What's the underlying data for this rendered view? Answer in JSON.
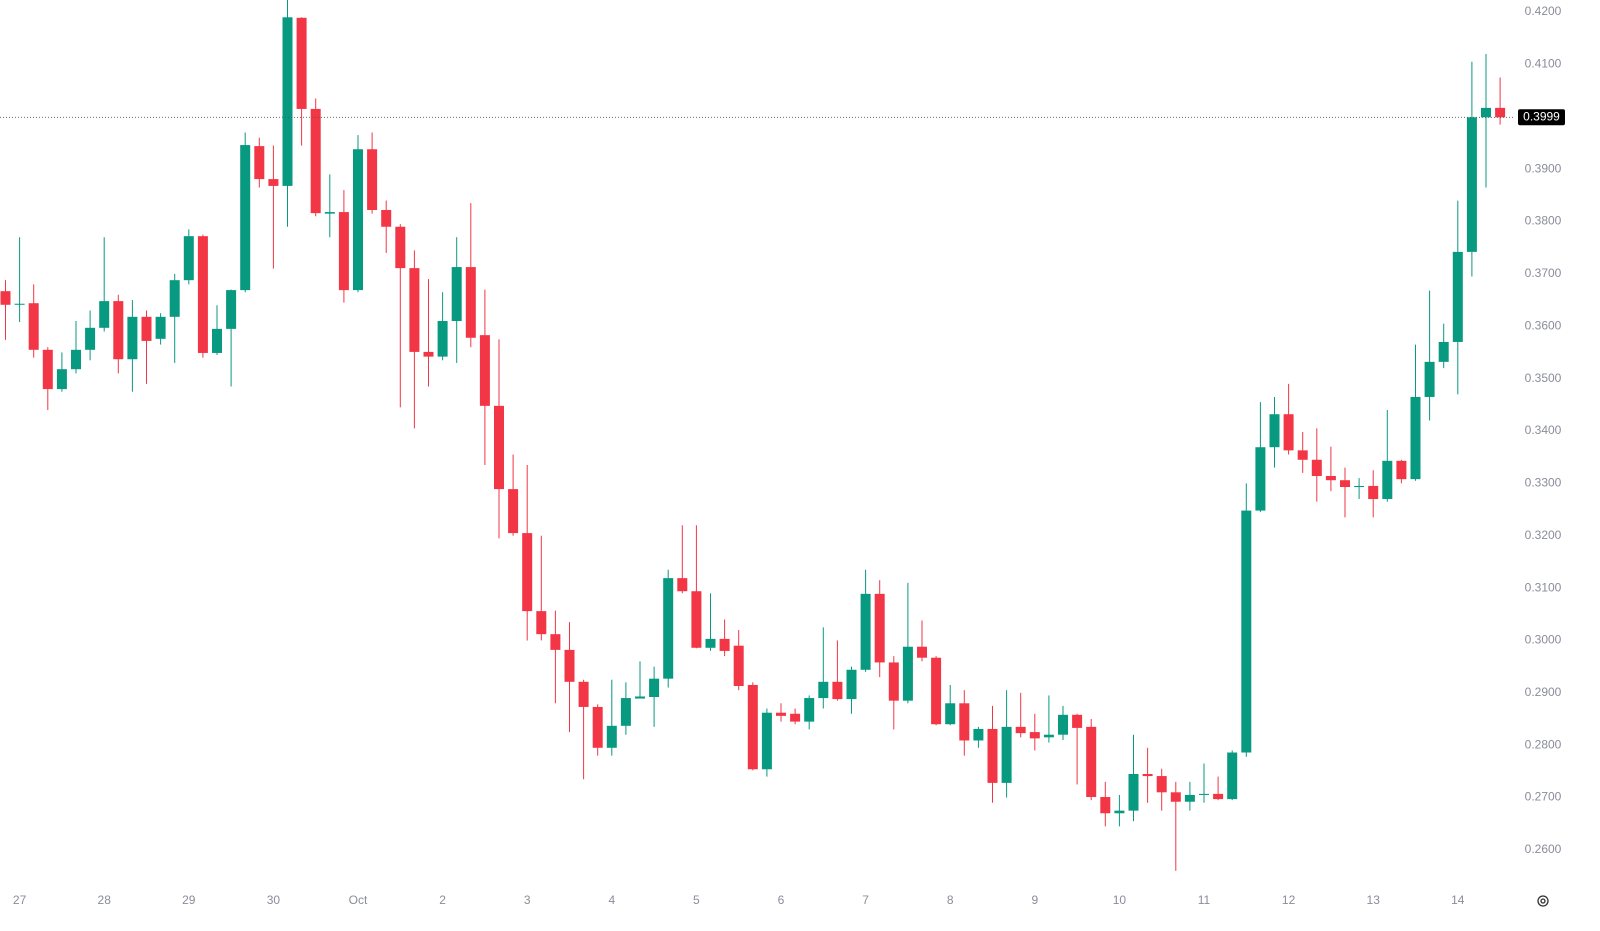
{
  "chart_data": {
    "type": "candlestick",
    "up_color": "#089981",
    "down_color": "#f23645",
    "categories": [
      null,
      "27",
      null,
      null,
      null,
      null,
      null,
      "28",
      null,
      null,
      null,
      null,
      null,
      "29",
      null,
      null,
      null,
      null,
      null,
      "30",
      null,
      null,
      null,
      null,
      null,
      "Oct",
      null,
      null,
      null,
      null,
      null,
      "2",
      null,
      null,
      null,
      null,
      null,
      "3",
      null,
      null,
      null,
      null,
      null,
      "4",
      null,
      null,
      null,
      null,
      null,
      "5",
      null,
      null,
      null,
      null,
      null,
      "6",
      null,
      null,
      null,
      null,
      null,
      "7",
      null,
      null,
      null,
      null,
      null,
      "8",
      null,
      null,
      null,
      null,
      null,
      "9",
      null,
      null,
      null,
      null,
      null,
      "10",
      null,
      null,
      null,
      null,
      null,
      "11",
      null,
      null,
      null,
      null,
      null,
      "12",
      null,
      null,
      null,
      null,
      null,
      "13",
      null,
      null,
      null,
      null,
      null,
      "14",
      null,
      null,
      null
    ],
    "open": [
      0.3667,
      0.3641,
      0.3644,
      0.3555,
      0.348,
      0.3518,
      0.3555,
      0.3597,
      0.3648,
      0.3537,
      0.3618,
      0.3576,
      0.3618,
      0.3688,
      0.3772,
      0.3549,
      0.3595,
      0.3669,
      0.3944,
      0.3881,
      0.3868,
      0.4189,
      0.4015,
      0.3815,
      0.3818,
      0.3669,
      0.3938,
      0.3822,
      0.379,
      0.3711,
      0.3551,
      0.3542,
      0.361,
      0.3713,
      0.3583,
      0.3448,
      0.3289,
      0.3205,
      0.3056,
      0.3012,
      0.2982,
      0.2921,
      0.2873,
      0.2795,
      0.2837,
      0.2889,
      0.2892,
      0.2927,
      0.3119,
      0.3094,
      0.2986,
      0.3003,
      0.299,
      0.2915,
      0.2754,
      0.2862,
      0.286,
      0.2845,
      0.289,
      0.2921,
      0.2888,
      0.2944,
      0.3089,
      0.2958,
      0.2885,
      0.2988,
      0.2967,
      0.284,
      0.288,
      0.2809,
      0.2831,
      0.2728,
      0.2835,
      0.2825,
      0.2815,
      0.282,
      0.2858,
      0.2835,
      0.2701,
      0.267,
      0.2675,
      0.2745,
      0.2741,
      0.271,
      0.2692,
      0.2705,
      0.2707,
      0.2697,
      0.2786,
      0.3248,
      0.3369,
      0.3432,
      0.3363,
      0.3345,
      0.3314,
      0.3306,
      0.3293,
      0.3295,
      0.327,
      0.3343,
      0.3308,
      0.3465,
      0.3532,
      0.357,
      0.3742,
      0.3999,
      0.4017
    ],
    "high": [
      0.3688,
      0.377,
      0.368,
      0.356,
      0.355,
      0.361,
      0.363,
      0.377,
      0.366,
      0.365,
      0.363,
      0.3625,
      0.37,
      0.3785,
      0.3775,
      0.364,
      0.367,
      0.397,
      0.396,
      0.3945,
      0.4225,
      0.419,
      0.4035,
      0.389,
      0.386,
      0.3965,
      0.397,
      0.384,
      0.3795,
      0.3745,
      0.369,
      0.3665,
      0.377,
      0.3835,
      0.367,
      0.3575,
      0.3355,
      0.3335,
      0.32,
      0.3057,
      0.3035,
      0.2925,
      0.2878,
      0.2925,
      0.292,
      0.296,
      0.295,
      0.3135,
      0.322,
      0.322,
      0.309,
      0.304,
      0.302,
      0.292,
      0.287,
      0.288,
      0.287,
      0.2895,
      0.3025,
      0.3,
      0.295,
      0.3135,
      0.3115,
      0.297,
      0.311,
      0.3038,
      0.297,
      0.2915,
      0.2905,
      0.2835,
      0.2875,
      0.2905,
      0.29,
      0.286,
      0.2895,
      0.2875,
      0.286,
      0.285,
      0.273,
      0.2705,
      0.282,
      0.2795,
      0.2755,
      0.273,
      0.273,
      0.2765,
      0.274,
      0.279,
      0.33,
      0.3455,
      0.3465,
      0.349,
      0.3398,
      0.3405,
      0.337,
      0.333,
      0.331,
      0.3325,
      0.344,
      0.3345,
      0.3565,
      0.3668,
      0.3605,
      0.384,
      0.4105,
      0.412,
      0.4075
    ],
    "low": [
      0.3574,
      0.3608,
      0.354,
      0.344,
      0.3475,
      0.351,
      0.3535,
      0.359,
      0.351,
      0.3475,
      0.349,
      0.3565,
      0.353,
      0.368,
      0.354,
      0.3545,
      0.3485,
      0.3665,
      0.3865,
      0.371,
      0.379,
      0.3945,
      0.381,
      0.377,
      0.3645,
      0.3665,
      0.3815,
      0.374,
      0.3445,
      0.3405,
      0.3485,
      0.3535,
      0.353,
      0.356,
      0.3335,
      0.3195,
      0.32,
      0.3,
      0.3,
      0.288,
      0.2825,
      0.2735,
      0.278,
      0.278,
      0.282,
      0.289,
      0.2835,
      0.291,
      0.309,
      0.2985,
      0.298,
      0.297,
      0.2905,
      0.2752,
      0.274,
      0.2845,
      0.284,
      0.283,
      0.287,
      0.2885,
      0.286,
      0.294,
      0.293,
      0.283,
      0.288,
      0.296,
      0.2838,
      0.2838,
      0.278,
      0.2795,
      0.269,
      0.27,
      0.2815,
      0.279,
      0.2805,
      0.281,
      0.2725,
      0.2695,
      0.2645,
      0.2645,
      0.2655,
      0.269,
      0.2675,
      0.256,
      0.2675,
      0.269,
      0.2695,
      0.2695,
      0.2778,
      0.3245,
      0.333,
      0.3355,
      0.332,
      0.3265,
      0.3285,
      0.3235,
      0.327,
      0.3235,
      0.3265,
      0.33,
      0.3305,
      0.342,
      0.352,
      0.347,
      0.3695,
      0.3865,
      0.3985
    ],
    "close": [
      0.3641,
      0.3643,
      0.3555,
      0.348,
      0.3518,
      0.3555,
      0.3597,
      0.3648,
      0.3537,
      0.3618,
      0.3572,
      0.3618,
      0.3688,
      0.3772,
      0.3549,
      0.3595,
      0.3669,
      0.3946,
      0.3881,
      0.3868,
      0.419,
      0.4015,
      0.3816,
      0.3818,
      0.3669,
      0.3938,
      0.3822,
      0.379,
      0.3711,
      0.3551,
      0.3542,
      0.361,
      0.3713,
      0.3578,
      0.3448,
      0.3289,
      0.3205,
      0.3056,
      0.3012,
      0.2982,
      0.2921,
      0.2873,
      0.2795,
      0.2837,
      0.289,
      0.2893,
      0.2927,
      0.3119,
      0.3094,
      0.2986,
      0.3003,
      0.298,
      0.2913,
      0.2754,
      0.2862,
      0.2856,
      0.2845,
      0.289,
      0.2921,
      0.2888,
      0.2944,
      0.3089,
      0.2958,
      0.2885,
      0.2988,
      0.2967,
      0.284,
      0.288,
      0.2809,
      0.2831,
      0.2728,
      0.2835,
      0.2823,
      0.2813,
      0.282,
      0.2858,
      0.2833,
      0.2701,
      0.267,
      0.2675,
      0.2745,
      0.2741,
      0.271,
      0.2692,
      0.2705,
      0.2707,
      0.2697,
      0.2786,
      0.3248,
      0.3369,
      0.3432,
      0.3363,
      0.3345,
      0.3314,
      0.3306,
      0.3293,
      0.3295,
      0.327,
      0.3343,
      0.3308,
      0.3465,
      0.3532,
      0.357,
      0.3742,
      0.3999,
      0.4017,
      0.3999
    ],
    "last_price": 0.3999,
    "ylim": [
      0.2533,
      0.4223
    ],
    "yticks": [
      {
        "value": 0.26,
        "label": "0.2600"
      },
      {
        "value": 0.27,
        "label": "0.2700"
      },
      {
        "value": 0.28,
        "label": "0.2800"
      },
      {
        "value": 0.29,
        "label": "0.2900"
      },
      {
        "value": 0.3,
        "label": "0.3000"
      },
      {
        "value": 0.31,
        "label": "0.3100"
      },
      {
        "value": 0.32,
        "label": "0.3200"
      },
      {
        "value": 0.33,
        "label": "0.3300"
      },
      {
        "value": 0.34,
        "label": "0.3400"
      },
      {
        "value": 0.35,
        "label": "0.3500"
      },
      {
        "value": 0.36,
        "label": "0.3600"
      },
      {
        "value": 0.37,
        "label": "0.3700"
      },
      {
        "value": 0.38,
        "label": "0.3800"
      },
      {
        "value": 0.39,
        "label": "0.3900"
      },
      {
        "value": 0.4,
        "label": "0.4000"
      },
      {
        "value": 0.41,
        "label": "0.4100"
      },
      {
        "value": 0.42,
        "label": "0.4200"
      }
    ],
    "grid": false
  }
}
